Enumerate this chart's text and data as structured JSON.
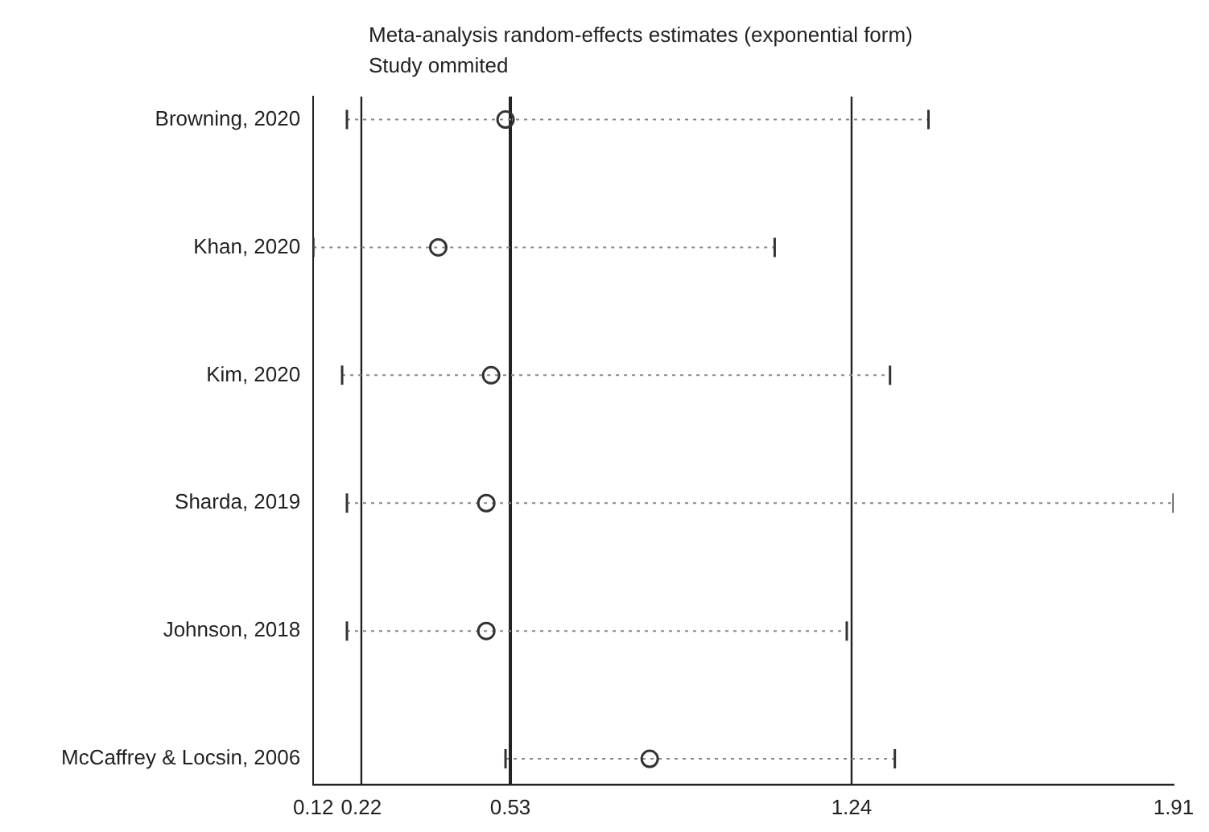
{
  "chart_data": {
    "type": "scatter",
    "orientation": "horizontal",
    "title": "Meta-analysis random-effects estimates (exponential form)",
    "subtitle": "Study ommited",
    "categories": [
      "Browning, 2020",
      "Khan, 2020",
      "Kim, 2020",
      "Sharda, 2019",
      "Johnson, 2018",
      "McCaffrey & Locsin, 2006"
    ],
    "values": [
      0.52,
      0.38,
      0.49,
      0.48,
      0.48,
      0.82
    ],
    "errors": [
      [
        0.19,
        1.4
      ],
      [
        0.12,
        1.08
      ],
      [
        0.18,
        1.32
      ],
      [
        0.19,
        1.91
      ],
      [
        0.19,
        1.23
      ],
      [
        0.52,
        1.33
      ]
    ],
    "color": "#333333",
    "xlim": [
      0.12,
      1.91
    ],
    "xticks": [
      0.12,
      0.22,
      0.53,
      1.24,
      1.91
    ],
    "ref_lines": [
      {
        "axis": "x",
        "value": 0.22,
        "color": "#222222"
      },
      {
        "axis": "x",
        "value": 0.53,
        "color": "#222222",
        "line_style": "solid"
      },
      {
        "axis": "x",
        "value": 1.24,
        "color": "#222222"
      }
    ],
    "marker": "circle",
    "grid": false,
    "legend": false
  }
}
